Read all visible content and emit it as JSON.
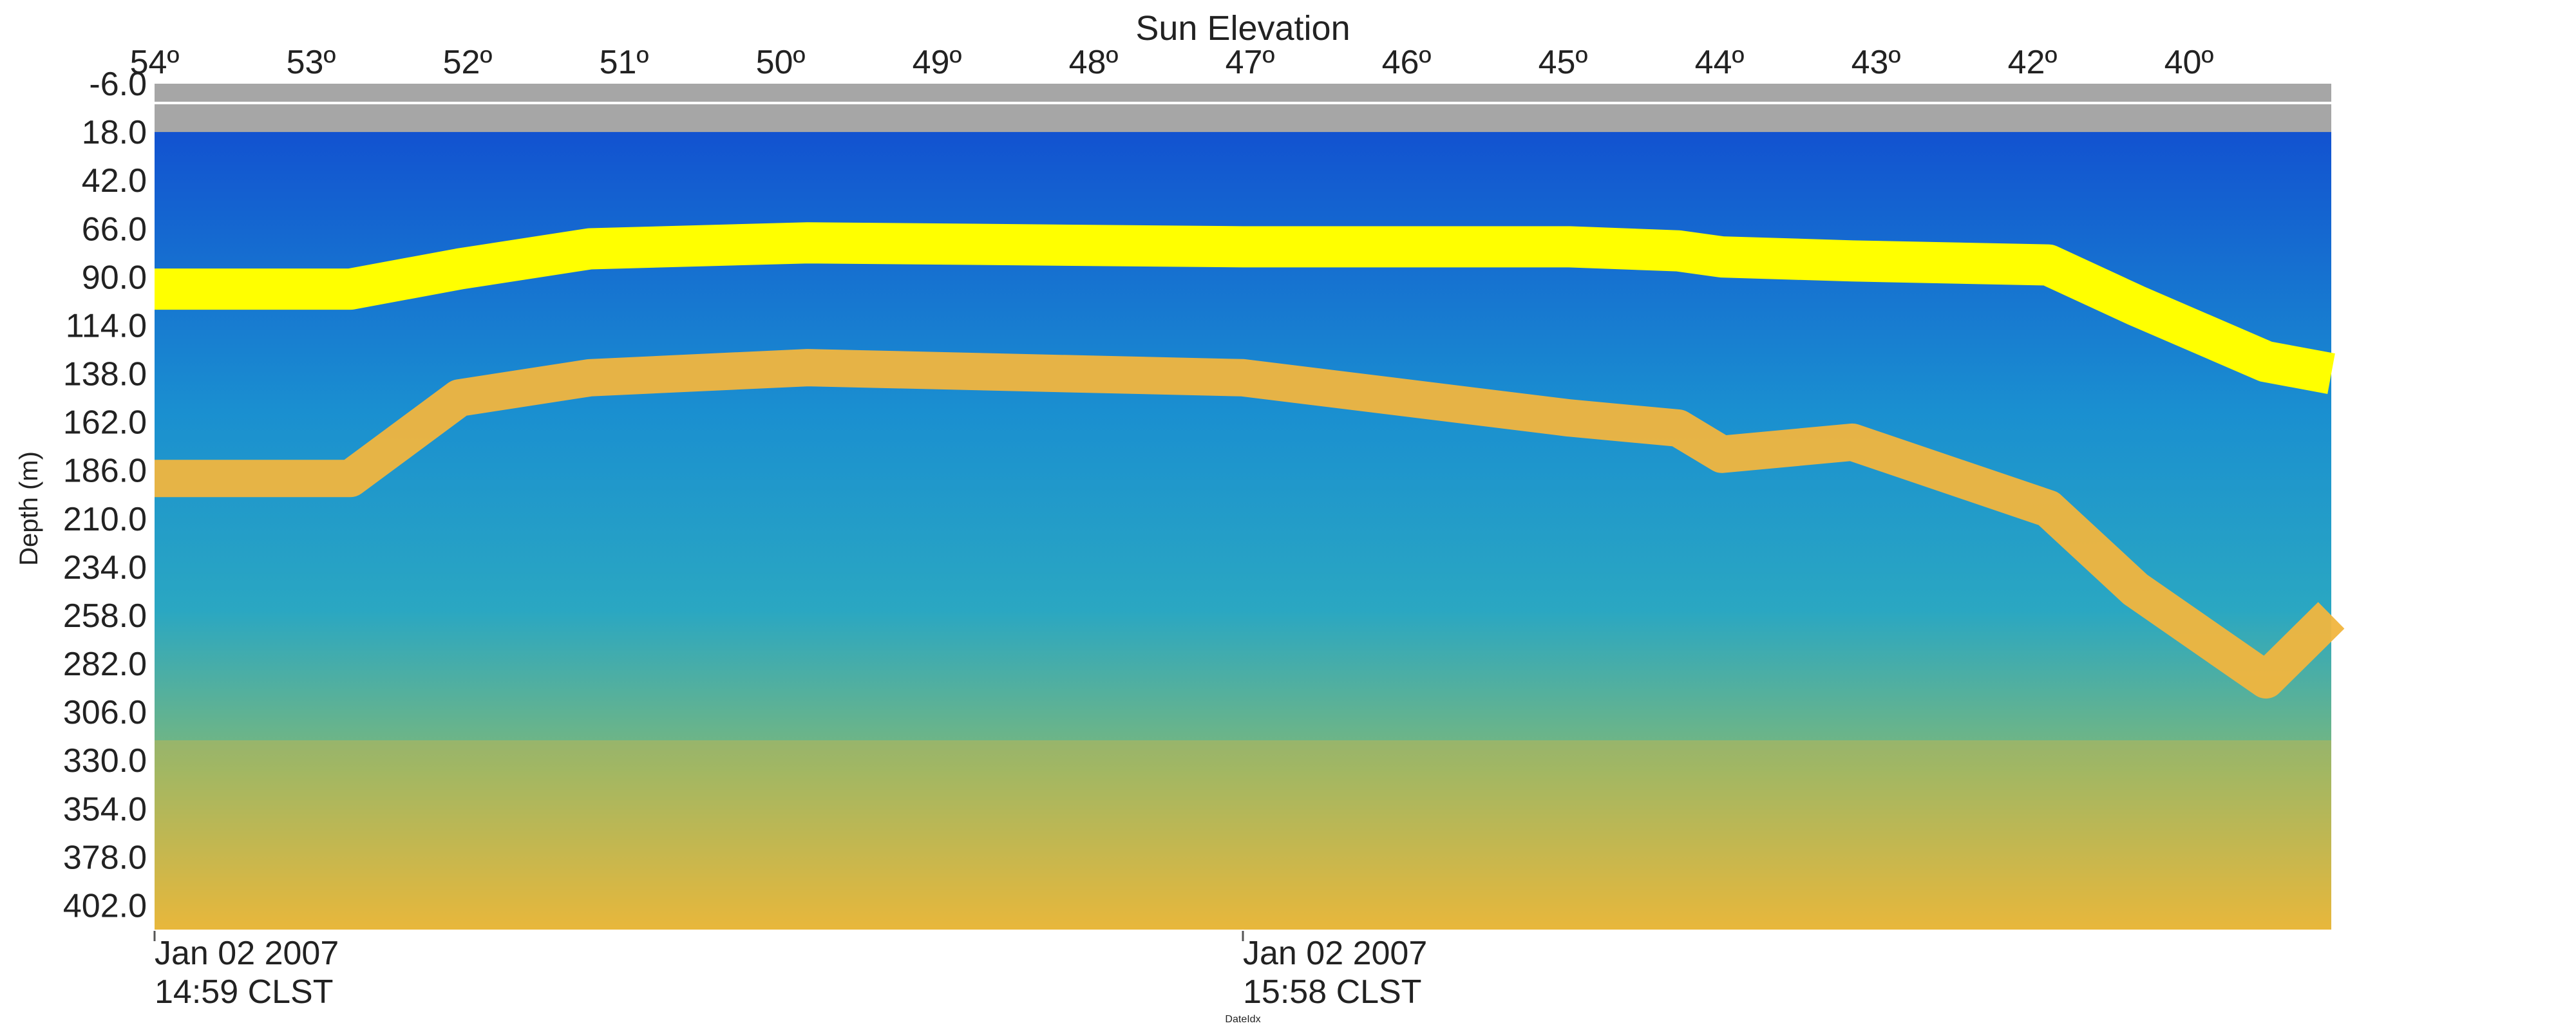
{
  "chart_data": {
    "type": "heatmap",
    "title": "",
    "top_axis": {
      "label": "Sun Elevation",
      "ticks": [
        "54º",
        "53º",
        "52º",
        "51º",
        "50º",
        "49º",
        "48º",
        "47º",
        "46º",
        "45º",
        "44º",
        "43º",
        "42º",
        "40º"
      ]
    },
    "y_axis": {
      "label": "Depth (m)",
      "ticks": [
        "-6.0",
        "18.0",
        "42.0",
        "66.0",
        "90.0",
        "114.0",
        "138.0",
        "162.0",
        "186.0",
        "210.0",
        "234.0",
        "258.0",
        "282.0",
        "306.0",
        "330.0",
        "354.0",
        "378.0",
        "402.0"
      ],
      "range": [
        -6,
        414
      ],
      "inverted": true
    },
    "x_axis": {
      "label": "DateIdx",
      "ticks": [
        {
          "line1": "Jan 02 2007",
          "line2": "14:59 CLST"
        },
        {
          "line1": "Jan 02 2007",
          "line2": "15:58 CLST"
        }
      ]
    },
    "colors": {
      "no_data": "#a6a6a6",
      "low": "#0f5fd6",
      "mid": "#1aa8c8",
      "high": "#f2c23a",
      "peak": "#ffff00"
    },
    "layers": {
      "no_data_depth": [
        -6,
        18
      ],
      "upper_band": {
        "x": [
          0,
          0.09,
          0.14,
          0.2,
          0.3,
          0.5,
          0.65,
          0.7,
          0.72,
          0.78,
          0.87,
          0.91,
          0.97,
          1.0
        ],
        "depth": [
          96,
          96,
          86,
          76,
          73,
          75,
          75,
          77,
          80,
          82,
          84,
          104,
          132,
          138
        ]
      },
      "lower_band": {
        "x": [
          0,
          0.09,
          0.14,
          0.2,
          0.3,
          0.5,
          0.65,
          0.7,
          0.72,
          0.78,
          0.87,
          0.91,
          0.97,
          1.0
        ],
        "depth": [
          190,
          190,
          150,
          140,
          135,
          140,
          160,
          165,
          178,
          172,
          205,
          245,
          290,
          258
        ]
      }
    }
  }
}
